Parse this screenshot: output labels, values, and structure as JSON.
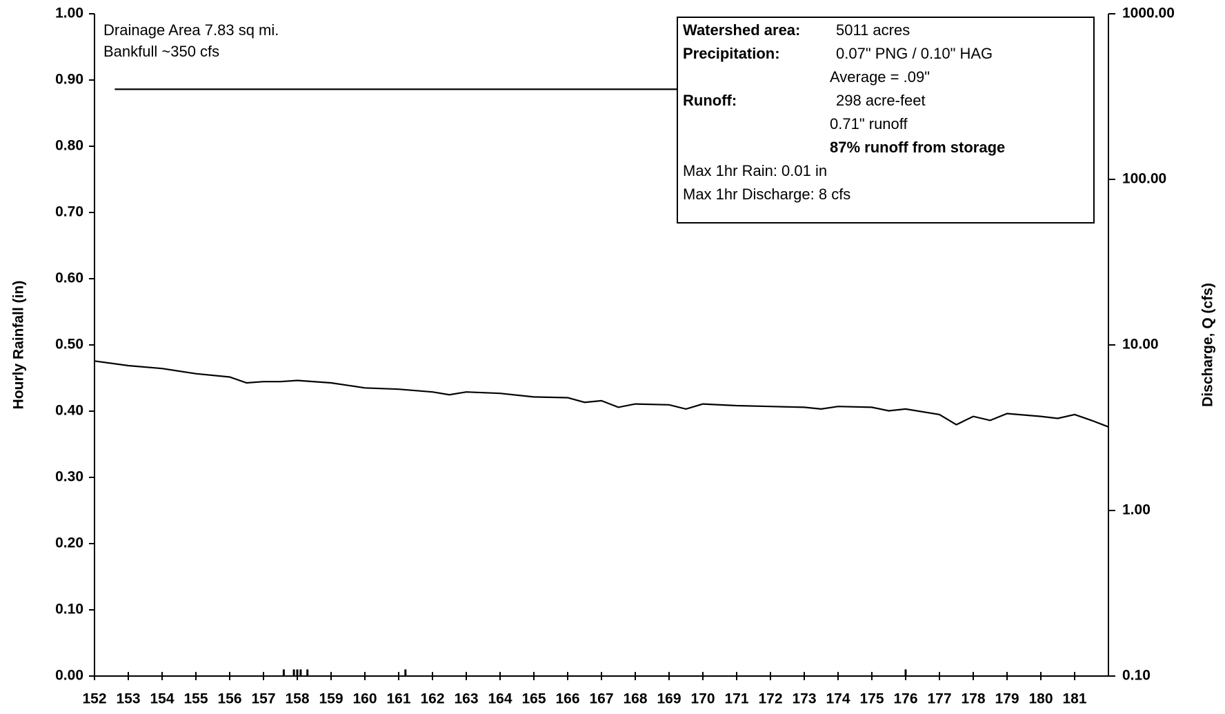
{
  "chart_data": {
    "type": "combo",
    "xlabel": null,
    "ylabel": "Hourly Rainfall (in)",
    "y2label": "Discharge, Q (cfs)",
    "annotations": [
      "Drainage Area 7.83 sq mi.",
      "Bankfull ~350 cfs"
    ],
    "info_box": [
      {
        "label": "Watershed area:",
        "value": "5011 acres"
      },
      {
        "label": "Precipitation:",
        "value": "0.07\" PNG / 0.10\" HAG"
      },
      {
        "label": null,
        "value": "Average = .09\""
      },
      {
        "label": "Runoff:",
        "value": "298 acre-feet"
      },
      {
        "label": null,
        "value": "0.71\" runoff"
      },
      {
        "label": null,
        "value": "87% runoff from storage",
        "emphasis": true
      },
      {
        "label": null,
        "value": "Max 1hr Rain: 0.01 in",
        "left": true
      },
      {
        "label": null,
        "value": "Max 1hr Discharge: 8 cfs",
        "left": true
      }
    ],
    "xlim": [
      152,
      182
    ],
    "xticks": [
      152,
      153,
      154,
      155,
      156,
      157,
      158,
      159,
      160,
      161,
      162,
      163,
      164,
      165,
      166,
      167,
      168,
      169,
      170,
      171,
      172,
      173,
      174,
      175,
      176,
      177,
      178,
      179,
      180,
      181
    ],
    "ylim": [
      0,
      1
    ],
    "yticks": [
      {
        "value": 0,
        "label": "0.00"
      },
      {
        "value": 0.1,
        "label": "0.10"
      },
      {
        "value": 0.2,
        "label": "0.20"
      },
      {
        "value": 0.3,
        "label": "0.30"
      },
      {
        "value": 0.4,
        "label": "0.40"
      },
      {
        "value": 0.5,
        "label": "0.50"
      },
      {
        "value": 0.6,
        "label": "0.60"
      },
      {
        "value": 0.7,
        "label": "0.70"
      },
      {
        "value": 0.8,
        "label": "0.80"
      },
      {
        "value": 0.9,
        "label": "0.90"
      },
      {
        "value": 1,
        "label": "1.00"
      }
    ],
    "y2lim": [
      0.1,
      1000
    ],
    "y2log": true,
    "y2ticks": [
      {
        "value": 0.1,
        "label": "0.10"
      },
      {
        "value": 1,
        "label": "1.00"
      },
      {
        "value": 10,
        "label": "10.00"
      },
      {
        "value": 100,
        "label": "100.00"
      },
      {
        "value": 1000,
        "label": "1000.00"
      }
    ],
    "grid": false,
    "series": [
      {
        "type": "bar",
        "color": "#000000",
        "x": [
          157.6,
          157.9,
          158.0,
          158.1,
          158.3,
          161.2,
          176.0
        ],
        "values": [
          0.01,
          0.01,
          0.01,
          0.01,
          0.01,
          0.01,
          0.01
        ]
      },
      {
        "type": "line",
        "axis": "y2",
        "color": "#000000",
        "x": [
          152,
          153,
          154,
          155,
          156,
          156.5,
          157,
          157.5,
          158,
          159,
          160,
          161,
          162,
          162.5,
          163,
          164,
          165,
          166,
          166.5,
          167,
          167.5,
          168,
          169,
          169.5,
          170,
          171,
          172,
          173,
          173.5,
          174,
          175,
          175.5,
          176,
          177,
          177.5,
          178,
          178.5,
          179,
          180,
          180.5,
          181,
          181.5,
          182
        ],
        "values": [
          8.0,
          7.5,
          7.2,
          6.7,
          6.4,
          5.9,
          6.0,
          6.0,
          6.1,
          5.9,
          5.5,
          5.4,
          5.2,
          5.0,
          5.2,
          5.1,
          4.85,
          4.8,
          4.5,
          4.6,
          4.2,
          4.4,
          4.35,
          4.1,
          4.4,
          4.3,
          4.25,
          4.2,
          4.1,
          4.25,
          4.2,
          4.0,
          4.1,
          3.8,
          3.3,
          3.7,
          3.5,
          3.85,
          3.7,
          3.6,
          3.8,
          3.5,
          3.2
        ]
      },
      {
        "type": "line",
        "axis": "y2",
        "color": "#000000",
        "x": [
          152.6,
          169.3
        ],
        "values": [
          350,
          350
        ]
      }
    ]
  }
}
